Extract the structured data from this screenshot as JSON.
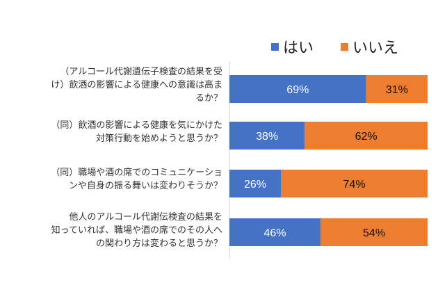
{
  "chart_data": {
    "type": "bar",
    "orientation": "horizontal",
    "stacked": true,
    "percent_stacked": true,
    "legend": {
      "placement": "top-right"
    },
    "grid": false,
    "xlim": [
      0,
      100
    ],
    "categories": [
      [
        "（アルコール代謝遺伝子検査の結果を受",
        "け）飲酒の影響による健康への意識は高ま",
        "るか？"
      ],
      [
        "（同）飲酒の影響による健康を気にかけた",
        "対策行動を始めようと思うか？"
      ],
      [
        "（同）職場や酒の席でのコミュニケーショ",
        "ンや自身の振る舞いは変わりそうか？"
      ],
      [
        "他人のアルコール代謝伝検査の結果を",
        "知っていれば、職場や酒の席でのその人へ",
        "の関わり方は変わると思うか？"
      ]
    ],
    "series": [
      {
        "name": "はい",
        "color": "#4472c4",
        "label_color": "#ffffff",
        "values": [
          69,
          38,
          26,
          46
        ]
      },
      {
        "name": "いいえ",
        "color": "#ed7d31",
        "label_color": "#111111",
        "values": [
          31,
          62,
          74,
          54
        ]
      }
    ],
    "value_suffix": "%"
  }
}
